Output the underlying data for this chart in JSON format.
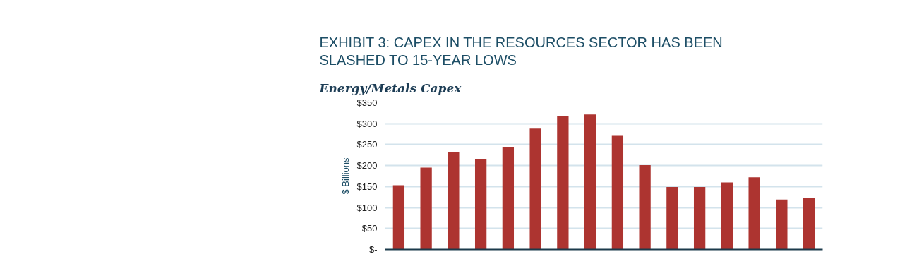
{
  "chart_data": {
    "type": "bar",
    "title": "EXHIBIT 3: CAPEX IN THE RESOURCES SECTOR HAS BEEN SLASHED TO 15-YEAR LOWS",
    "subtitle": "Energy/Metals Capex",
    "ylabel": "$ Billions",
    "categories": [
      null,
      null,
      null,
      null,
      null,
      null,
      null,
      null,
      null,
      null,
      null,
      null,
      null,
      null,
      null,
      null
    ],
    "values": [
      153,
      195,
      232,
      215,
      243,
      288,
      317,
      322,
      271,
      201,
      149,
      149,
      160,
      172,
      119,
      122
    ],
    "color": "#ad3430",
    "ylim": [
      0,
      350
    ],
    "yticks": [
      {
        "value": 0,
        "label": "$-"
      },
      {
        "value": 50,
        "label": "$50"
      },
      {
        "value": 100,
        "label": "$100"
      },
      {
        "value": 150,
        "label": "$150"
      },
      {
        "value": 200,
        "label": "$200"
      },
      {
        "value": 250,
        "label": "$250"
      },
      {
        "value": 300,
        "label": "$300"
      },
      {
        "value": 350,
        "label": "$350"
      }
    ],
    "grid": "y"
  }
}
